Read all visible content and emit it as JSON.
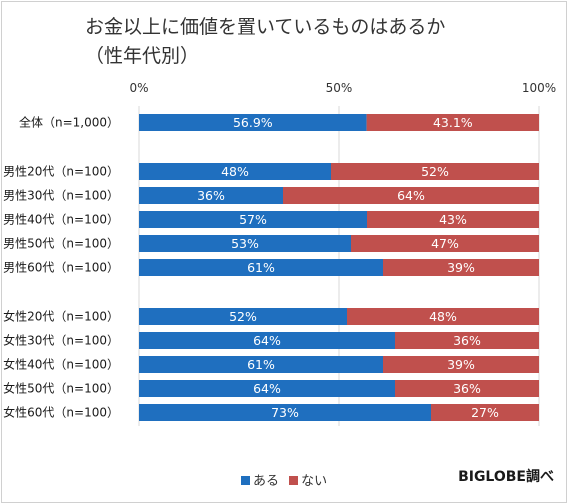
{
  "chart_data": {
    "type": "bar",
    "orientation": "horizontal",
    "stacked": "percent",
    "title": [
      "お金以上に価値を置いているものはあるか",
      "（性年代別）"
    ],
    "xlim": [
      0,
      100
    ],
    "x_ticks": [
      "0%",
      "50%",
      "100%"
    ],
    "grid": "vertical",
    "legend_position": "bottom",
    "categories": [
      "全体（n=1,000）",
      "男性20代（n=100）",
      "男性30代（n=100）",
      "男性40代（n=100）",
      "男性50代（n=100）",
      "男性60代（n=100）",
      "女性20代（n=100）",
      "女性30代（n=100）",
      "女性40代（n=100）",
      "女性50代（n=100）",
      "女性60代（n=100）"
    ],
    "series": [
      {
        "name": "ある",
        "color": "#1f6fbf",
        "values": [
          56.9,
          48,
          36,
          57,
          53,
          61,
          52,
          64,
          61,
          64,
          73
        ],
        "labels": [
          "56.9%",
          "48%",
          "36%",
          "57%",
          "53%",
          "61%",
          "52%",
          "64%",
          "61%",
          "64%",
          "73%"
        ]
      },
      {
        "name": "ない",
        "color": "#c0504d",
        "values": [
          43.1,
          52,
          64,
          43,
          47,
          39,
          48,
          36,
          39,
          36,
          27
        ],
        "labels": [
          "43.1%",
          "52%",
          "64%",
          "43%",
          "47%",
          "39%",
          "48%",
          "36%",
          "39%",
          "36%",
          "27%"
        ]
      }
    ]
  },
  "source": "BIGLOBE調べ"
}
